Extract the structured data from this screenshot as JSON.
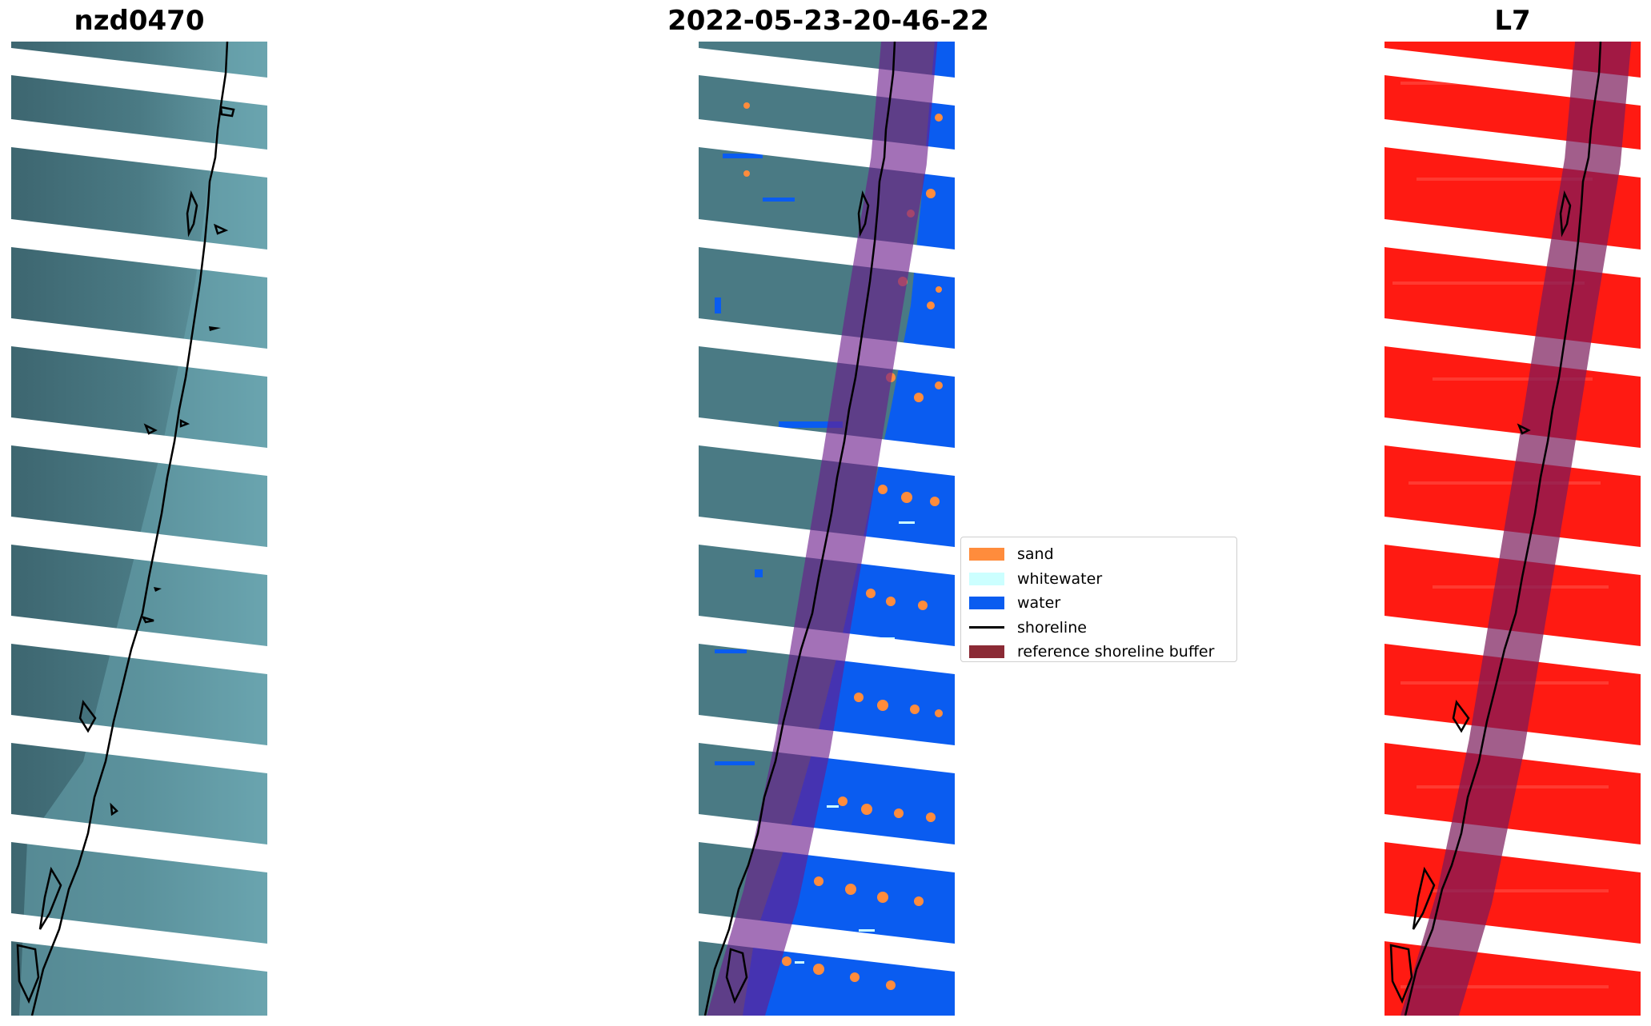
{
  "panels": [
    {
      "id": "rgb",
      "title": "nzd0470"
    },
    {
      "id": "classification",
      "title": "2022-05-23-20-46-22"
    },
    {
      "id": "mndwi",
      "title": "L7"
    }
  ],
  "legend": [
    {
      "label": "sand",
      "color": "#ff8c3c",
      "kind": "patch"
    },
    {
      "label": "whitewater",
      "color": "#ccffff",
      "kind": "patch"
    },
    {
      "label": "water",
      "color": "#0a5cf0",
      "kind": "patch"
    },
    {
      "label": "shoreline",
      "color": "#000000",
      "kind": "line"
    },
    {
      "label": "reference shoreline buffer",
      "color": "#8b2a35",
      "kind": "patch"
    }
  ],
  "colors": {
    "land": "#3f6c75",
    "sea": "#5f9aa5",
    "red": "#ff1a12",
    "buffer": "#6b1a8a"
  }
}
